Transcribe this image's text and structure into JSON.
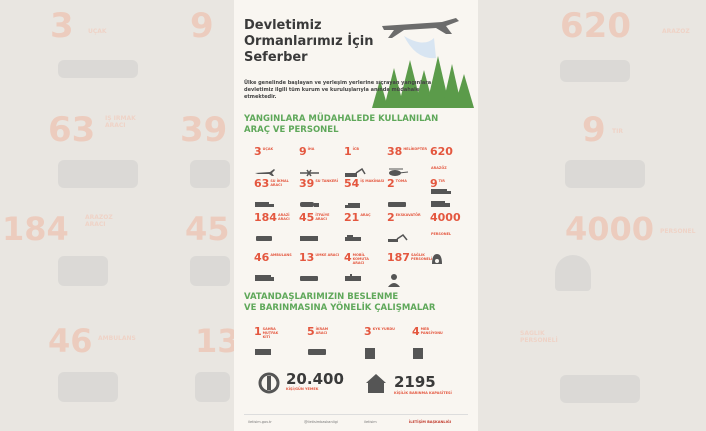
{
  "background": {
    "left_numbers": [
      "3",
      "63",
      "184",
      "46"
    ],
    "right_numbers": [
      "620",
      "9",
      "4000"
    ],
    "mid_left_numbers": [
      "9",
      "39",
      "45",
      "13"
    ],
    "left_labels": [
      "UÇAK",
      "İŞ İRMAK\nARACI",
      "ARAZÖZ\nARACI",
      "AMBULANS"
    ],
    "right_labels": [
      "ARAZÖZ",
      "TIR",
      "PERSONEL",
      "SAĞLIK\nPERSONELİ"
    ]
  },
  "poster": {
    "title_lines": [
      "Devletimiz",
      "Ormanlarımız İçin",
      "Seferber"
    ],
    "lead": "Ülke genelinde başlayan ve yerleşim yerlerine sıçrayan yangınlara devletimiz ilgili tüm kurum ve kuruluşlarıyla anında müdahale etmektedir.",
    "section1": [
      "YANGINLARA  MÜDAHALEDE KULLANILAN",
      "ARAÇ VE PERSONEL"
    ],
    "items": [
      {
        "num": "3",
        "label": "UÇAK"
      },
      {
        "num": "9",
        "label": "İHA"
      },
      {
        "num": "1",
        "label": "İCB"
      },
      {
        "num": "38",
        "label": "HELİKOPTER"
      },
      {
        "num": "620",
        "label": "ARAZÖZ"
      },
      {
        "num": "63",
        "label": "SU İKMAL ARACI"
      },
      {
        "num": "39",
        "label": "SU TANKERİ"
      },
      {
        "num": "54",
        "label": "İŞ MAKİNASI"
      },
      {
        "num": "2",
        "label": "TOMA"
      },
      {
        "num": "9",
        "label": "TIR"
      },
      {
        "num": "184",
        "label": "ARAZİ ARACI"
      },
      {
        "num": "45",
        "label": "İTFAİYE ARACI"
      },
      {
        "num": "21",
        "label": "ARAÇ"
      },
      {
        "num": "2",
        "label": "EKSKAVATÖR"
      },
      {
        "num": "4000",
        "label": "PERSONEL"
      },
      {
        "num": "46",
        "label": "AMBULANS"
      },
      {
        "num": "13",
        "label": "UMKE ARACI"
      },
      {
        "num": "4",
        "label": "MOBİL KOMUTA ARACI"
      },
      {
        "num": "187",
        "label": "SAĞLIK PERSONELİ"
      }
    ],
    "section2": [
      "VATANDAŞLARIMIZIN BESLENME",
      "VE BARINMASINA YÖNELİK ÇALIŞMALAR"
    ],
    "items2": [
      {
        "num": "1",
        "label": "SAHRA MUTFAK KİTİ"
      },
      {
        "num": "5",
        "label": "İKRAM ARACI"
      },
      {
        "num": "3",
        "label": "KYK YURDU"
      },
      {
        "num": "4",
        "label": "MEB PANSİYONU"
      }
    ],
    "meals": {
      "num": "20.400",
      "label": "KİŞİ/GÜN YEMEK"
    },
    "shelter": {
      "num": "2195",
      "label": "KİŞİLİK BARINMA KAPASİTESİ"
    },
    "footer": {
      "left": "iletisim.gov.tr",
      "social": "@iletisimbaskanligi",
      "social2": "iletisim",
      "brand": "İLETİŞİM BAŞKANLIĞI"
    }
  },
  "colors": {
    "accent": "#e4573f",
    "green": "#5fa85a",
    "dark": "#3a3a3a"
  }
}
